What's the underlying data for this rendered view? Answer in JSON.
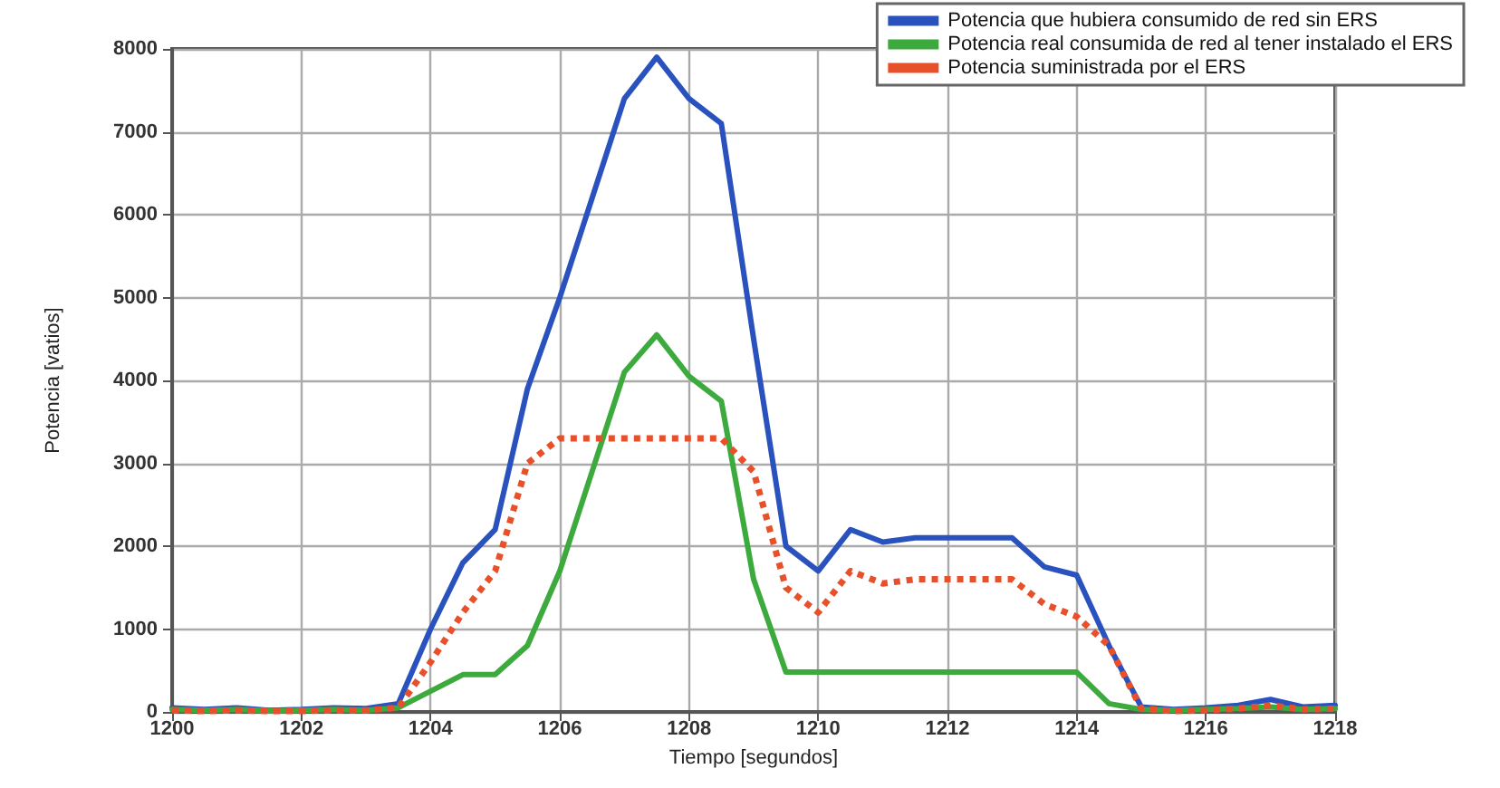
{
  "chart_data": {
    "type": "line",
    "xlabel": "Tiempo [segundos]",
    "ylabel": "Potencia [vatios]",
    "x": [
      1200,
      1200.5,
      1201,
      1201.5,
      1202,
      1202.5,
      1203,
      1203.5,
      1204,
      1204.5,
      1205,
      1205.5,
      1206,
      1206.5,
      1207,
      1207.5,
      1208,
      1208.5,
      1209,
      1209.5,
      1210,
      1210.5,
      1211,
      1211.5,
      1212,
      1212.5,
      1213,
      1213.5,
      1214,
      1214.5,
      1215,
      1215.5,
      1216,
      1216.5,
      1217,
      1217.5,
      1218
    ],
    "series": [
      {
        "name": "Potencia que hubiera consumido de red sin ERS",
        "color": "#2a52be",
        "line_style": "solid",
        "values": [
          50,
          30,
          50,
          20,
          30,
          50,
          40,
          100,
          1000,
          1800,
          2200,
          3900,
          5000,
          6200,
          7400,
          7900,
          7400,
          7100,
          4500,
          2000,
          1700,
          2200,
          2050,
          2100,
          2100,
          2100,
          2100,
          1750,
          1650,
          800,
          60,
          30,
          50,
          80,
          150,
          60,
          80
        ]
      },
      {
        "name": "Potencia real consumida de red al tener instalado el ERS",
        "color": "#3caa3c",
        "line_style": "solid",
        "values": [
          30,
          20,
          30,
          10,
          20,
          30,
          20,
          50,
          250,
          450,
          450,
          800,
          1700,
          2900,
          4100,
          4550,
          4050,
          3750,
          1600,
          480,
          480,
          480,
          480,
          480,
          480,
          480,
          480,
          480,
          480,
          100,
          30,
          20,
          30,
          40,
          60,
          30,
          40
        ]
      },
      {
        "name": "Potencia suministrada por el ERS",
        "color": "#e8502a",
        "line_style": "dotted",
        "values": [
          20,
          10,
          20,
          10,
          10,
          20,
          20,
          50,
          600,
          1200,
          1700,
          3000,
          3300,
          3300,
          3300,
          3300,
          3300,
          3300,
          2900,
          1500,
          1200,
          1700,
          1550,
          1600,
          1600,
          1600,
          1600,
          1300,
          1150,
          800,
          40,
          10,
          20,
          40,
          80,
          30,
          40
        ]
      }
    ],
    "xlim": [
      1200,
      1218
    ],
    "xticks": [
      1200,
      1202,
      1204,
      1206,
      1208,
      1210,
      1212,
      1214,
      1216,
      1218
    ],
    "ylim": [
      0,
      8000
    ],
    "yticks": [
      0,
      1000,
      2000,
      3000,
      4000,
      5000,
      6000,
      7000,
      8000
    ],
    "grid": true,
    "legend": "top right",
    "marker": "none"
  }
}
